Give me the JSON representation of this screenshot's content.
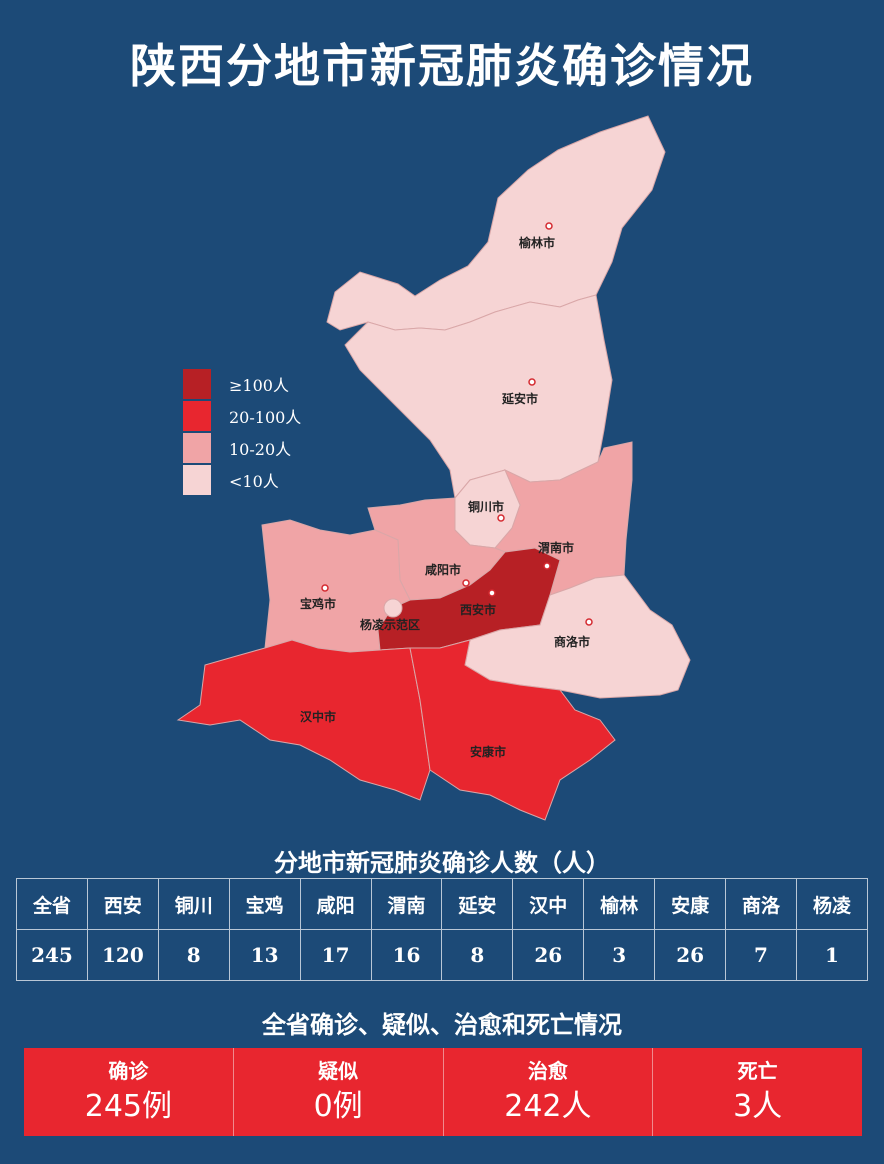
{
  "title": "陕西分地市新冠肺炎确诊情况",
  "legend": [
    {
      "label": "≥100人",
      "color": "#b72025"
    },
    {
      "label": "20-100人",
      "color": "#e8262f"
    },
    {
      "label": "10-20人",
      "color": "#f0a4a6"
    },
    {
      "label": "<10人",
      "color": "#f6d4d4"
    }
  ],
  "map": {
    "cities": [
      {
        "name": "榆林市",
        "level": "<10人"
      },
      {
        "name": "延安市",
        "level": "<10人"
      },
      {
        "name": "铜川市",
        "level": "<10人"
      },
      {
        "name": "渭南市",
        "level": "10-20人"
      },
      {
        "name": "咸阳市",
        "level": "10-20人"
      },
      {
        "name": "宝鸡市",
        "level": "10-20人"
      },
      {
        "name": "西安市",
        "level": "≥100人"
      },
      {
        "name": "杨凌示范区",
        "level": "<10人"
      },
      {
        "name": "商洛市",
        "level": "<10人"
      },
      {
        "name": "汉中市",
        "level": "20-100人"
      },
      {
        "name": "安康市",
        "level": "20-100人"
      }
    ]
  },
  "table": {
    "title": "分地市新冠肺炎确诊人数（人）",
    "headers": [
      "全省",
      "西安",
      "铜川",
      "宝鸡",
      "咸阳",
      "渭南",
      "延安",
      "汉中",
      "榆林",
      "安康",
      "商洛",
      "杨凌"
    ],
    "values": [
      "245",
      "120",
      "8",
      "13",
      "17",
      "16",
      "8",
      "26",
      "3",
      "26",
      "7",
      "1"
    ]
  },
  "status": {
    "title": "全省确诊、疑似、治愈和死亡情况",
    "items": [
      {
        "label": "确诊",
        "value": "245例"
      },
      {
        "label": "疑似",
        "value": "0例"
      },
      {
        "label": "治愈",
        "value": "242人"
      },
      {
        "label": "死亡",
        "value": "3人"
      }
    ]
  }
}
